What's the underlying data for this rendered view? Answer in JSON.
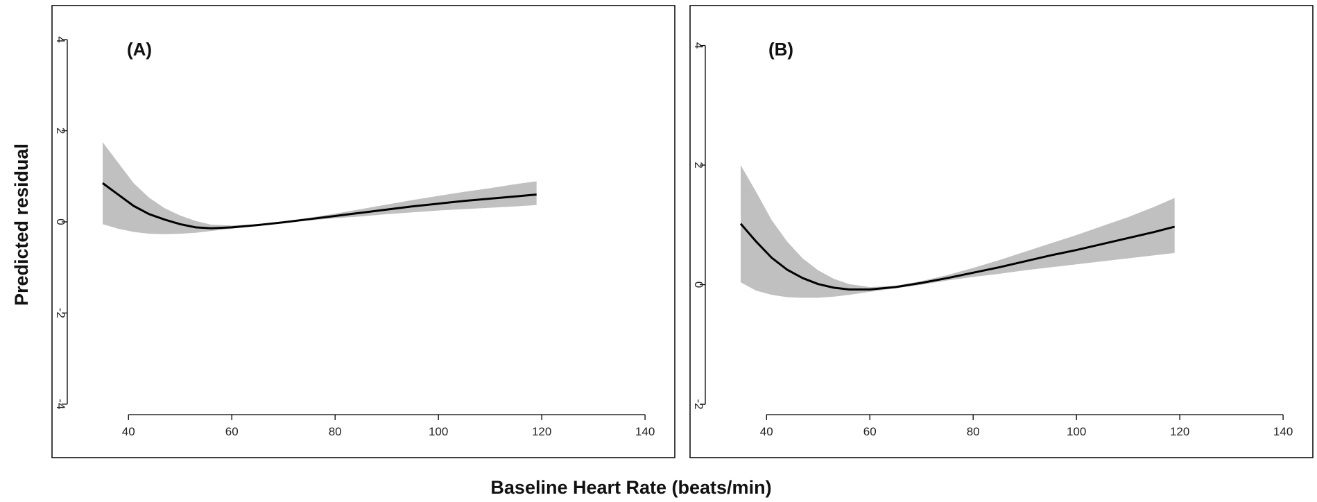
{
  "figure": {
    "ylabel": "Predicted residual",
    "xlabel": "Baseline Heart Rate (beats/min)"
  },
  "chart_data": [
    {
      "type": "line",
      "panel_label": "(A)",
      "xlim": [
        35,
        142
      ],
      "ylim": [
        -4.2,
        4.2
      ],
      "xticks": [
        40,
        60,
        80,
        100,
        120,
        140
      ],
      "yticks": [
        -4,
        -2,
        0,
        2,
        4
      ],
      "ytick_rotation": "vertical",
      "band_color": "#c0c0c0",
      "line_color": "#000000",
      "series": [
        {
          "x": [
            35,
            38,
            41,
            44,
            47,
            50,
            53,
            56,
            60,
            65,
            70,
            75,
            80,
            85,
            90,
            95,
            100,
            105,
            110,
            115,
            119
          ],
          "y": [
            0.85,
            0.6,
            0.35,
            0.17,
            0.05,
            -0.05,
            -0.12,
            -0.14,
            -0.12,
            -0.07,
            -0.01,
            0.06,
            0.13,
            0.2,
            0.27,
            0.34,
            0.4,
            0.46,
            0.51,
            0.56,
            0.6
          ],
          "lower": [
            -0.05,
            -0.15,
            -0.22,
            -0.26,
            -0.27,
            -0.26,
            -0.24,
            -0.2,
            -0.15,
            -0.09,
            -0.03,
            0.03,
            0.08,
            0.12,
            0.17,
            0.21,
            0.25,
            0.28,
            0.31,
            0.34,
            0.37
          ],
          "upper": [
            1.75,
            1.3,
            0.85,
            0.53,
            0.3,
            0.14,
            0.02,
            -0.06,
            -0.08,
            -0.05,
            0.01,
            0.09,
            0.18,
            0.28,
            0.38,
            0.48,
            0.57,
            0.66,
            0.74,
            0.83,
            0.89
          ]
        }
      ]
    },
    {
      "type": "line",
      "panel_label": "(B)",
      "xlim": [
        35,
        142
      ],
      "ylim": [
        -2.15,
        4.25
      ],
      "xticks": [
        40,
        60,
        80,
        100,
        120,
        140
      ],
      "yticks": [
        -2,
        0,
        2,
        4
      ],
      "ytick_rotation": "vertical",
      "band_color": "#c0c0c0",
      "line_color": "#000000",
      "series": [
        {
          "x": [
            35,
            38,
            41,
            44,
            47,
            50,
            53,
            56,
            60,
            65,
            70,
            75,
            80,
            85,
            90,
            95,
            100,
            105,
            110,
            115,
            119
          ],
          "y": [
            1.02,
            0.72,
            0.45,
            0.25,
            0.11,
            0.01,
            -0.05,
            -0.08,
            -0.08,
            -0.04,
            0.03,
            0.11,
            0.2,
            0.29,
            0.39,
            0.49,
            0.58,
            0.68,
            0.78,
            0.88,
            0.97
          ],
          "lower": [
            0.04,
            -0.1,
            -0.17,
            -0.21,
            -0.22,
            -0.22,
            -0.2,
            -0.17,
            -0.12,
            -0.06,
            0.0,
            0.07,
            0.13,
            0.18,
            0.24,
            0.29,
            0.34,
            0.39,
            0.44,
            0.49,
            0.53
          ],
          "upper": [
            2.0,
            1.55,
            1.08,
            0.72,
            0.44,
            0.24,
            0.1,
            0.01,
            -0.04,
            -0.02,
            0.06,
            0.16,
            0.28,
            0.41,
            0.55,
            0.69,
            0.83,
            0.98,
            1.13,
            1.3,
            1.45
          ]
        }
      ]
    }
  ]
}
